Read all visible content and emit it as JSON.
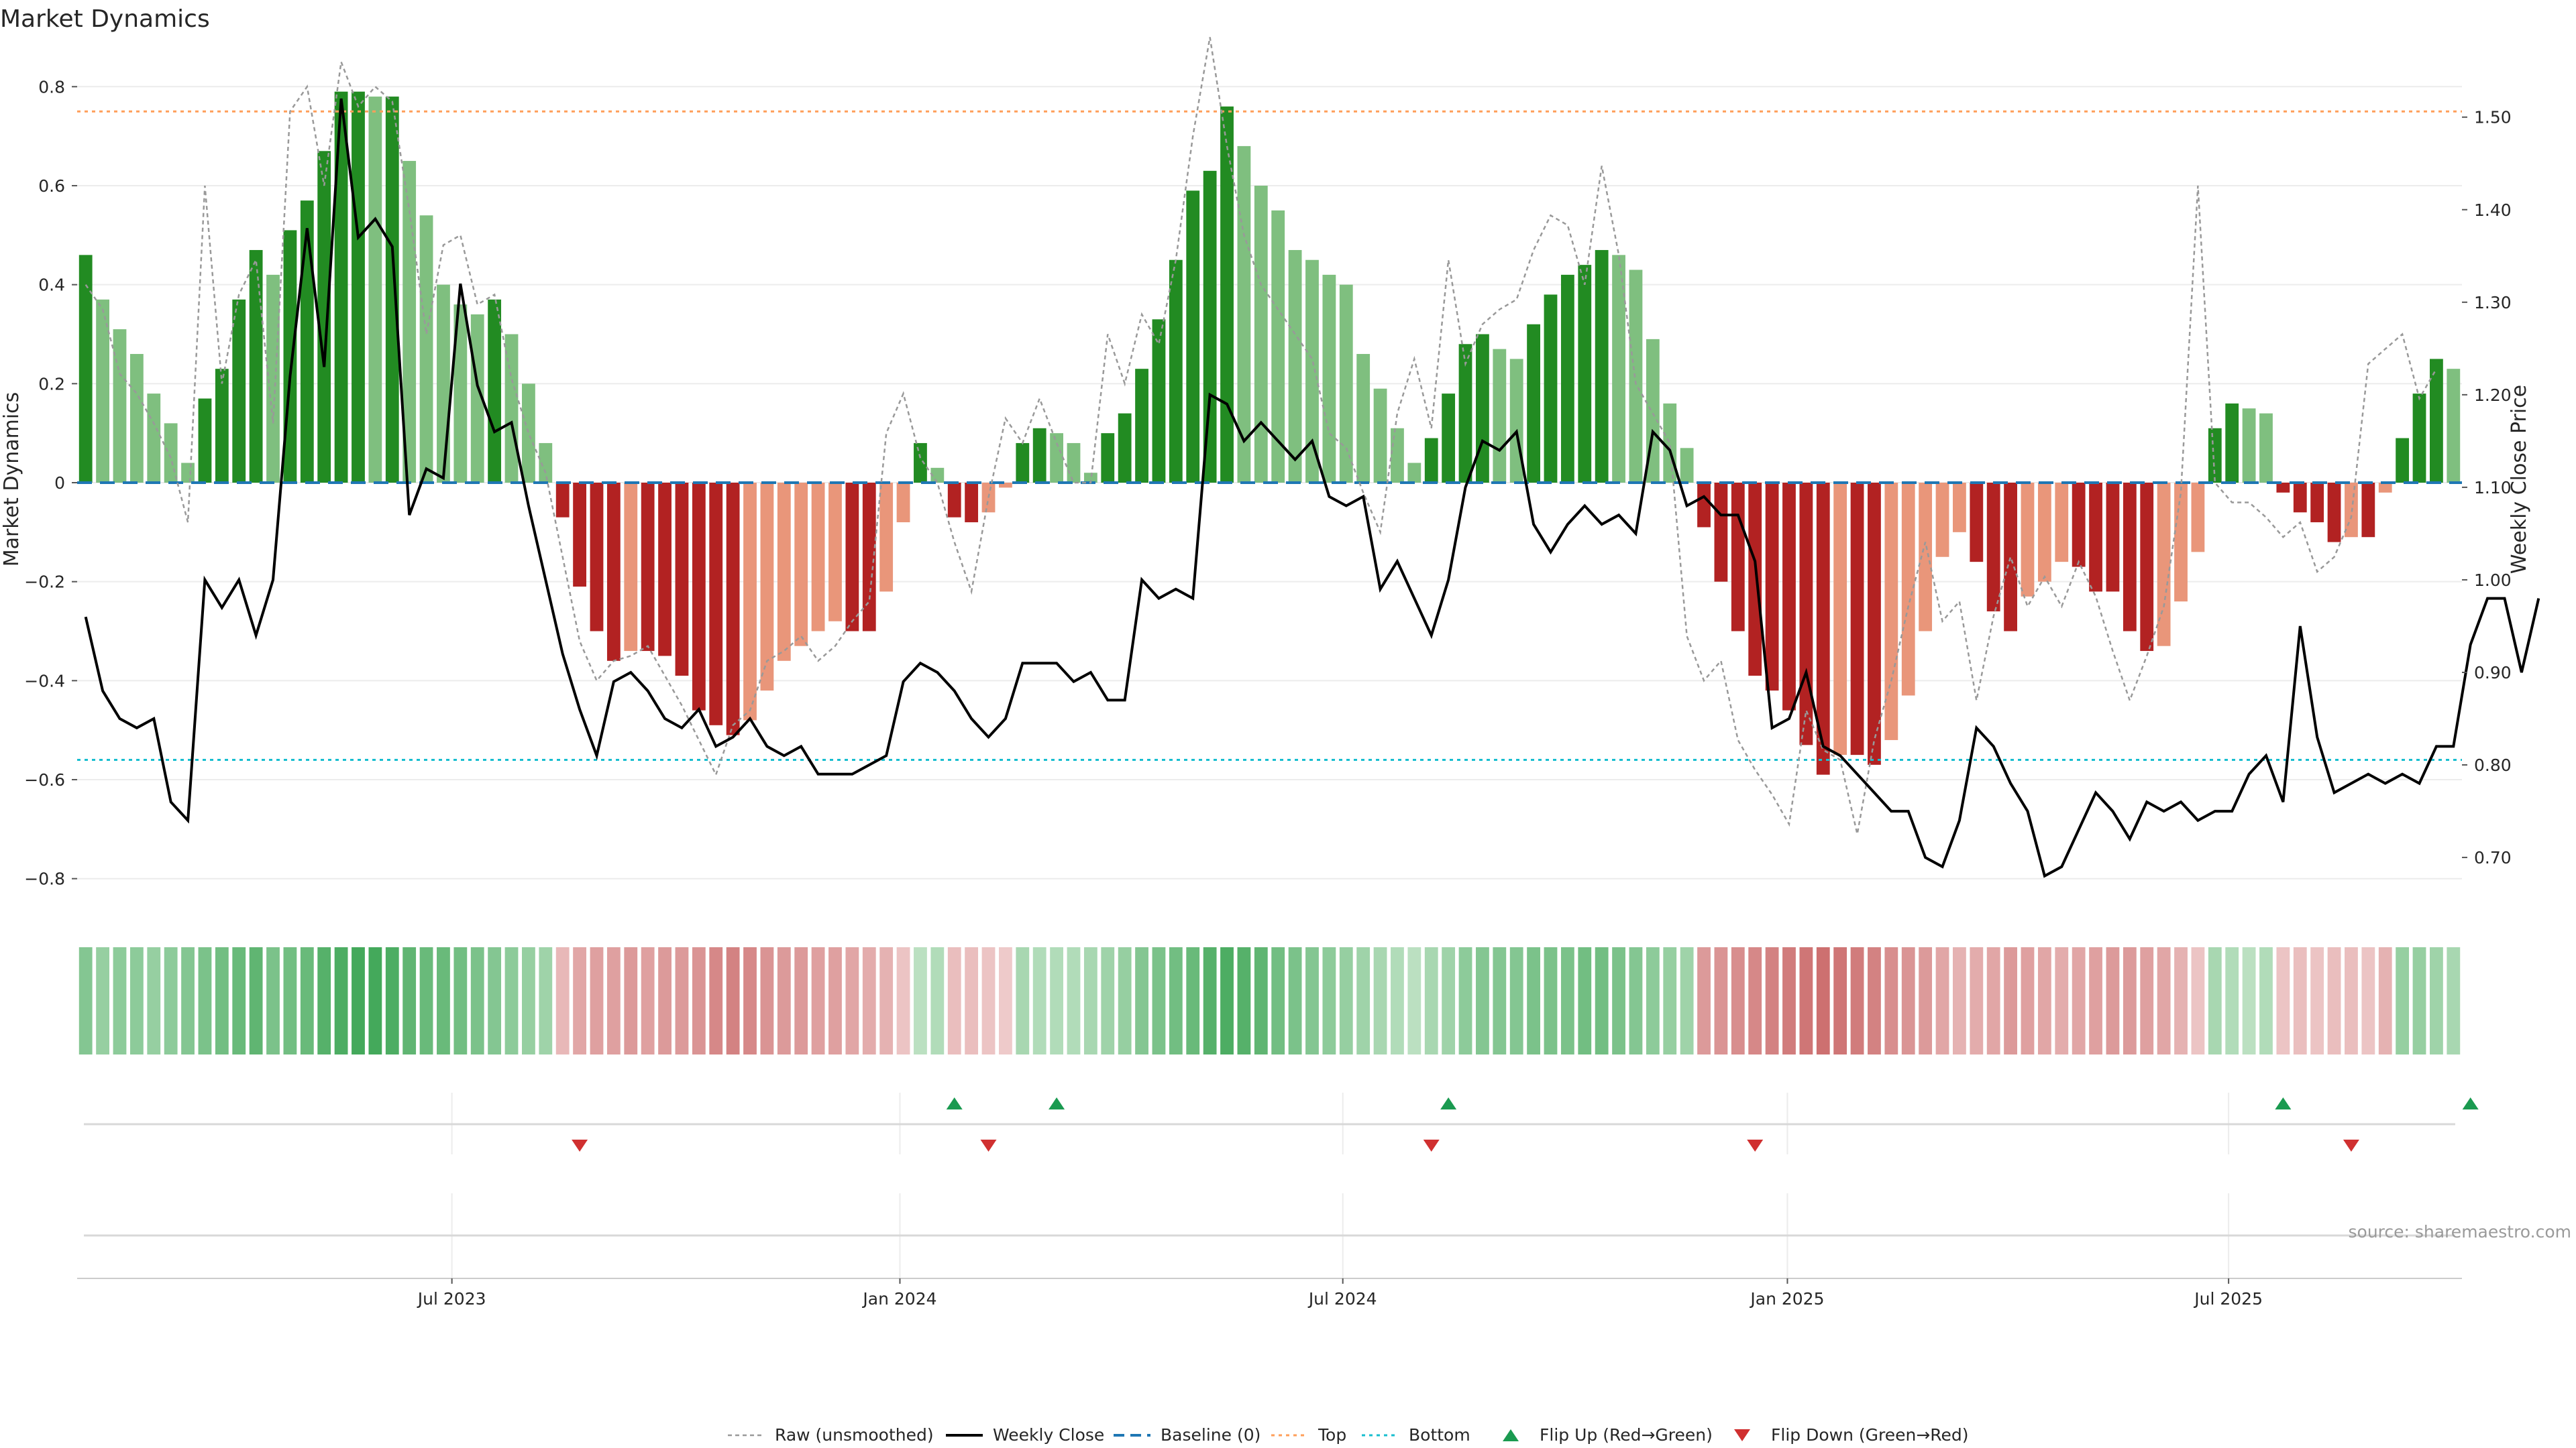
{
  "colors": {
    "strong_green": "#228b22",
    "light_green": "#7fbf7f",
    "strong_red": "#b22222",
    "light_red": "#e9967a",
    "weekly_close": "#000000",
    "raw": "#999999",
    "baseline": "#1f77b4",
    "top": "#ff9f5a",
    "bottom": "#17becf",
    "flip_up": "#1a9a50",
    "flip_down": "#d03030"
  },
  "source_text": "source: sharemaestro.com",
  "chart_data": {
    "type": "bar",
    "title": "Market Dynamics",
    "ylabel": "Market Dynamics",
    "y2label": "Weekly Close Price",
    "ylim": [
      -0.86,
      0.86
    ],
    "y2lim": [
      0.645,
      1.565
    ],
    "yticks": [
      -0.8,
      -0.6,
      -0.4,
      -0.2,
      0,
      0.2,
      0.4,
      0.6,
      0.8
    ],
    "yticklabels": [
      "−0.8",
      "−0.6",
      "−0.4",
      "−0.2",
      "0",
      "0.2",
      "0.4",
      "0.6",
      "0.8"
    ],
    "y2ticks": [
      0.7,
      0.8,
      0.9,
      1.0,
      1.1,
      1.2,
      1.3,
      1.4,
      1.5
    ],
    "y2ticklabels": [
      "0.70",
      "0.80",
      "0.90",
      "1.00",
      "1.10",
      "1.20",
      "1.30",
      "1.40",
      "1.50"
    ],
    "xticks": [
      {
        "week": 22,
        "label": "Jul 2023"
      },
      {
        "week": 48.3,
        "label": "Jan 2024"
      },
      {
        "week": 74.3,
        "label": "Jul 2024"
      },
      {
        "week": 100.4,
        "label": "Jan 2025"
      },
      {
        "week": 126.3,
        "label": "Jul 2025"
      }
    ],
    "top": 0.75,
    "bottom": -0.56,
    "baseline": 0,
    "dynamics": [
      0.46,
      0.37,
      0.31,
      0.26,
      0.18,
      0.12,
      0.04,
      0.17,
      0.23,
      0.37,
      0.47,
      0.42,
      0.51,
      0.57,
      0.67,
      0.79,
      0.79,
      0.78,
      0.78,
      0.65,
      0.54,
      0.4,
      0.36,
      0.34,
      0.37,
      0.3,
      0.2,
      0.08,
      -0.07,
      -0.21,
      -0.3,
      -0.36,
      -0.34,
      -0.34,
      -0.35,
      -0.39,
      -0.46,
      -0.49,
      -0.51,
      -0.48,
      -0.42,
      -0.36,
      -0.33,
      -0.3,
      -0.28,
      -0.3,
      -0.3,
      -0.22,
      -0.08,
      0.08,
      0.03,
      -0.07,
      -0.08,
      -0.06,
      -0.01,
      0.08,
      0.11,
      0.1,
      0.08,
      0.02,
      0.1,
      0.14,
      0.23,
      0.33,
      0.45,
      0.59,
      0.63,
      0.76,
      0.68,
      0.6,
      0.55,
      0.47,
      0.45,
      0.42,
      0.4,
      0.26,
      0.19,
      0.11,
      0.04,
      0.09,
      0.18,
      0.28,
      0.3,
      0.27,
      0.25,
      0.32,
      0.38,
      0.42,
      0.44,
      0.47,
      0.46,
      0.43,
      0.29,
      0.16,
      0.07,
      -0.09,
      -0.2,
      -0.3,
      -0.39,
      -0.42,
      -0.46,
      -0.53,
      -0.59,
      -0.55,
      -0.55,
      -0.57,
      -0.52,
      -0.43,
      -0.3,
      -0.15,
      -0.1,
      -0.16,
      -0.26,
      -0.3,
      -0.23,
      -0.2,
      -0.16,
      -0.17,
      -0.22,
      -0.22,
      -0.3,
      -0.34,
      -0.33,
      -0.24,
      -0.14,
      0.11,
      0.16,
      0.15,
      0.14,
      -0.02,
      -0.06,
      -0.08,
      -0.12,
      -0.11,
      -0.11,
      -0.02,
      0.09,
      0.18,
      0.25,
      0.23
    ],
    "intensity": [
      0.55,
      0.45,
      0.5,
      0.5,
      0.45,
      0.5,
      0.55,
      0.6,
      0.65,
      0.7,
      0.75,
      0.6,
      0.65,
      0.7,
      0.8,
      0.85,
      0.9,
      0.9,
      0.85,
      0.75,
      0.7,
      0.7,
      0.65,
      0.6,
      0.55,
      0.5,
      0.45,
      0.4,
      0.3,
      0.45,
      0.5,
      0.5,
      0.55,
      0.5,
      0.55,
      0.55,
      0.6,
      0.7,
      0.75,
      0.7,
      0.6,
      0.55,
      0.55,
      0.5,
      0.5,
      0.45,
      0.4,
      0.35,
      0.2,
      0.25,
      0.3,
      0.25,
      0.25,
      0.2,
      0.15,
      0.35,
      0.3,
      0.3,
      0.3,
      0.35,
      0.4,
      0.45,
      0.55,
      0.6,
      0.65,
      0.7,
      0.8,
      0.85,
      0.8,
      0.75,
      0.65,
      0.6,
      0.55,
      0.5,
      0.45,
      0.4,
      0.35,
      0.3,
      0.25,
      0.35,
      0.4,
      0.5,
      0.55,
      0.55,
      0.55,
      0.6,
      0.6,
      0.6,
      0.65,
      0.65,
      0.6,
      0.55,
      0.5,
      0.45,
      0.4,
      0.55,
      0.6,
      0.65,
      0.7,
      0.75,
      0.8,
      0.85,
      0.9,
      0.85,
      0.8,
      0.75,
      0.65,
      0.6,
      0.55,
      0.45,
      0.35,
      0.4,
      0.45,
      0.55,
      0.5,
      0.45,
      0.4,
      0.45,
      0.5,
      0.55,
      0.55,
      0.5,
      0.45,
      0.35,
      0.2,
      0.35,
      0.3,
      0.25,
      0.3,
      0.2,
      0.25,
      0.2,
      0.25,
      0.25,
      0.2,
      0.35,
      0.45,
      0.45,
      0.4,
      0.35
    ],
    "weekly_close": [
      0.96,
      0.88,
      0.85,
      0.84,
      0.85,
      0.76,
      0.74,
      1.0,
      0.97,
      1.0,
      0.94,
      1.0,
      1.22,
      1.38,
      1.23,
      1.52,
      1.37,
      1.39,
      1.36,
      1.07,
      1.12,
      1.11,
      1.32,
      1.21,
      1.16,
      1.17,
      1.08,
      1.0,
      0.92,
      0.86,
      0.81,
      0.89,
      0.9,
      0.88,
      0.85,
      0.84,
      0.86,
      0.82,
      0.83,
      0.85,
      0.82,
      0.81,
      0.82,
      0.79,
      0.79,
      0.79,
      0.8,
      0.81,
      0.89,
      0.91,
      0.9,
      0.88,
      0.85,
      0.83,
      0.85,
      0.91,
      0.91,
      0.91,
      0.89,
      0.9,
      0.87,
      0.87,
      1.0,
      0.98,
      0.99,
      0.98,
      1.2,
      1.19,
      1.15,
      1.17,
      1.15,
      1.13,
      1.15,
      1.09,
      1.08,
      1.09,
      0.99,
      1.02,
      0.98,
      0.94,
      1.0,
      1.1,
      1.15,
      1.14,
      1.16,
      1.06,
      1.03,
      1.06,
      1.08,
      1.06,
      1.07,
      1.05,
      1.16,
      1.14,
      1.08,
      1.09,
      1.07,
      1.07,
      1.02,
      0.84,
      0.85,
      0.9,
      0.82,
      0.81,
      0.79,
      0.77,
      0.75,
      0.75,
      0.7,
      0.69,
      0.74,
      0.84,
      0.82,
      0.78,
      0.75,
      0.68,
      0.69,
      0.73,
      0.77,
      0.75,
      0.72,
      0.76,
      0.75,
      0.76,
      0.74,
      0.75,
      0.75,
      0.79,
      0.81,
      0.76,
      0.95,
      0.83,
      0.77,
      0.78,
      0.79,
      0.78,
      0.79,
      0.78,
      0.82,
      0.82,
      0.93,
      0.98,
      0.98,
      0.9,
      0.98
    ],
    "raw": [
      0.4,
      0.35,
      0.22,
      0.18,
      0.12,
      0.05,
      -0.08,
      0.6,
      0.2,
      0.38,
      0.45,
      0.12,
      0.75,
      0.8,
      0.6,
      0.85,
      0.76,
      0.8,
      0.77,
      0.55,
      0.3,
      0.48,
      0.5,
      0.36,
      0.38,
      0.21,
      0.1,
      0.02,
      -0.15,
      -0.32,
      -0.4,
      -0.36,
      -0.35,
      -0.33,
      -0.39,
      -0.45,
      -0.52,
      -0.59,
      -0.49,
      -0.46,
      -0.36,
      -0.34,
      -0.31,
      -0.36,
      -0.33,
      -0.28,
      -0.24,
      0.1,
      0.18,
      0.05,
      0.0,
      -0.12,
      -0.22,
      -0.03,
      0.13,
      0.08,
      0.17,
      0.08,
      0.0,
      0.0,
      0.3,
      0.2,
      0.34,
      0.28,
      0.45,
      0.7,
      0.9,
      0.68,
      0.5,
      0.4,
      0.35,
      0.3,
      0.25,
      0.1,
      0.07,
      -0.02,
      -0.1,
      0.14,
      0.25,
      0.11,
      0.45,
      0.24,
      0.32,
      0.35,
      0.37,
      0.47,
      0.54,
      0.52,
      0.4,
      0.64,
      0.46,
      0.2,
      0.14,
      0.08,
      -0.31,
      -0.4,
      -0.36,
      -0.52,
      -0.58,
      -0.63,
      -0.69,
      -0.46,
      -0.54,
      -0.56,
      -0.71,
      -0.52,
      -0.4,
      -0.25,
      -0.12,
      -0.28,
      -0.24,
      -0.44,
      -0.27,
      -0.15,
      -0.25,
      -0.19,
      -0.25,
      -0.16,
      -0.23,
      -0.34,
      -0.44,
      -0.35,
      -0.25,
      -0.02,
      0.6,
      0.0,
      -0.04,
      -0.04,
      -0.07,
      -0.11,
      -0.08,
      -0.18,
      -0.15,
      -0.07,
      0.24,
      0.27,
      0.3,
      0.17,
      0.23
    ],
    "flips_up": [
      51,
      57,
      80,
      129,
      140
    ],
    "flips_down": [
      29,
      53,
      79,
      98,
      133
    ]
  },
  "legend": [
    {
      "key": "raw",
      "label": "Raw (unsmoothed)"
    },
    {
      "key": "weekly_close",
      "label": "Weekly Close"
    },
    {
      "key": "baseline",
      "label": "Baseline (0)"
    },
    {
      "key": "top",
      "label": "Top"
    },
    {
      "key": "bottom",
      "label": "Bottom"
    },
    {
      "key": "flip_up",
      "label": "Flip Up (Red→Green)"
    },
    {
      "key": "flip_down",
      "label": "Flip Down (Green→Red)"
    }
  ]
}
